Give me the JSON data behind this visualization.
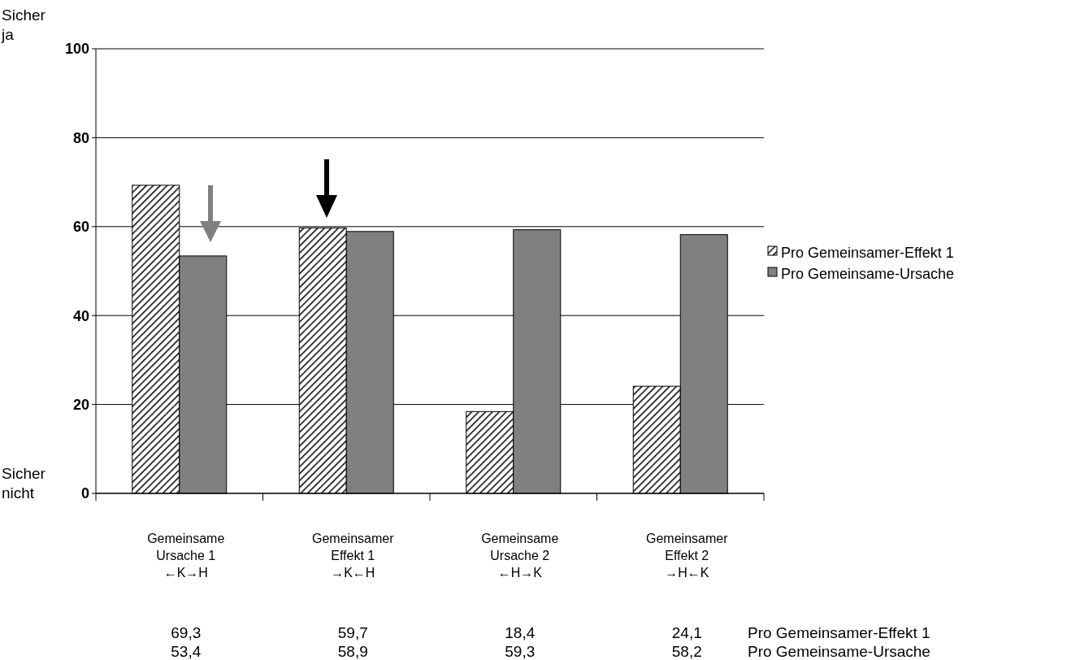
{
  "chart_data": {
    "type": "bar",
    "categories": [
      "Gemeinsame\nUrsache 1\n←K→H",
      "Gemeinsamer\nEffekt 1\n→K←H",
      "Gemeinsame\nUrsache 2\n←H→K",
      "Gemeinsamer\nEffekt 2\n→H←K"
    ],
    "series": [
      {
        "name": "Pro Gemeinsamer-Effekt 1",
        "color": "#000000",
        "values": [
          69.3,
          59.7,
          18.4,
          24.1
        ],
        "value_labels": [
          "69,3",
          "59,7",
          "18,4",
          "24,1"
        ]
      },
      {
        "name": "Pro Gemeinsame-Ursache",
        "color": "#808080",
        "values": [
          53.4,
          58.9,
          59.3,
          58.2
        ],
        "value_labels": [
          "53,4",
          "58,9",
          "59,3",
          "58,2"
        ]
      }
    ],
    "ylim": [
      0,
      100
    ],
    "yticks": [
      0,
      20,
      40,
      60,
      80,
      100
    ],
    "grid": "y",
    "legend": "right",
    "annotations": [
      "Sicher\nja",
      "Sicher\nnicht"
    ]
  }
}
